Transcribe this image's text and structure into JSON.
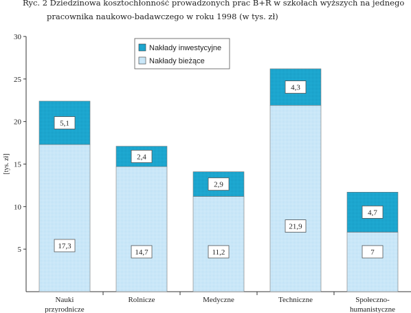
{
  "title": {
    "line1": "Ryc. 2 Dziedzinowa kosztochłonność prowadzonych prac B+R w szkołach wyższych na jednego",
    "line2": "pracownika naukowo-badawczego w roku 1998 (w tys. zł)"
  },
  "colors": {
    "current": "#c9e6f7",
    "investment": "#1ea6cf",
    "border": "#777777"
  },
  "chart_data": {
    "type": "bar",
    "stacked": true,
    "title": "Ryc. 2 Dziedzinowa kosztochłonność prowadzonych prac B+R w szkołach wyższych na jednego pracownika naukowo-badawczego w roku 1998 (w tys. zł)",
    "ylabel": "[tys. zł]",
    "xlabel": "",
    "ylim": [
      0,
      30
    ],
    "yticks": [
      5,
      10,
      15,
      20,
      25,
      30
    ],
    "grid": false,
    "legend_position": "top-center",
    "categories": [
      [
        "Nauki",
        "przyrodnicze"
      ],
      [
        "Rolnicze"
      ],
      [
        "Medyczne"
      ],
      [
        "Techniczne"
      ],
      [
        "Społeczno-",
        "humanistyczne"
      ]
    ],
    "series": [
      {
        "name": "Nakłady bieżące",
        "values": [
          17.3,
          14.7,
          11.2,
          21.9,
          7
        ],
        "labels": [
          "17,3",
          "14,7",
          "11,2",
          "21,9",
          "7"
        ]
      },
      {
        "name": "Nakłady inwestycyjne",
        "values": [
          5.1,
          2.4,
          2.9,
          4.3,
          4.7
        ],
        "labels": [
          "5,1",
          "2,4",
          "2,9",
          "4,3",
          "4,7"
        ]
      }
    ]
  }
}
